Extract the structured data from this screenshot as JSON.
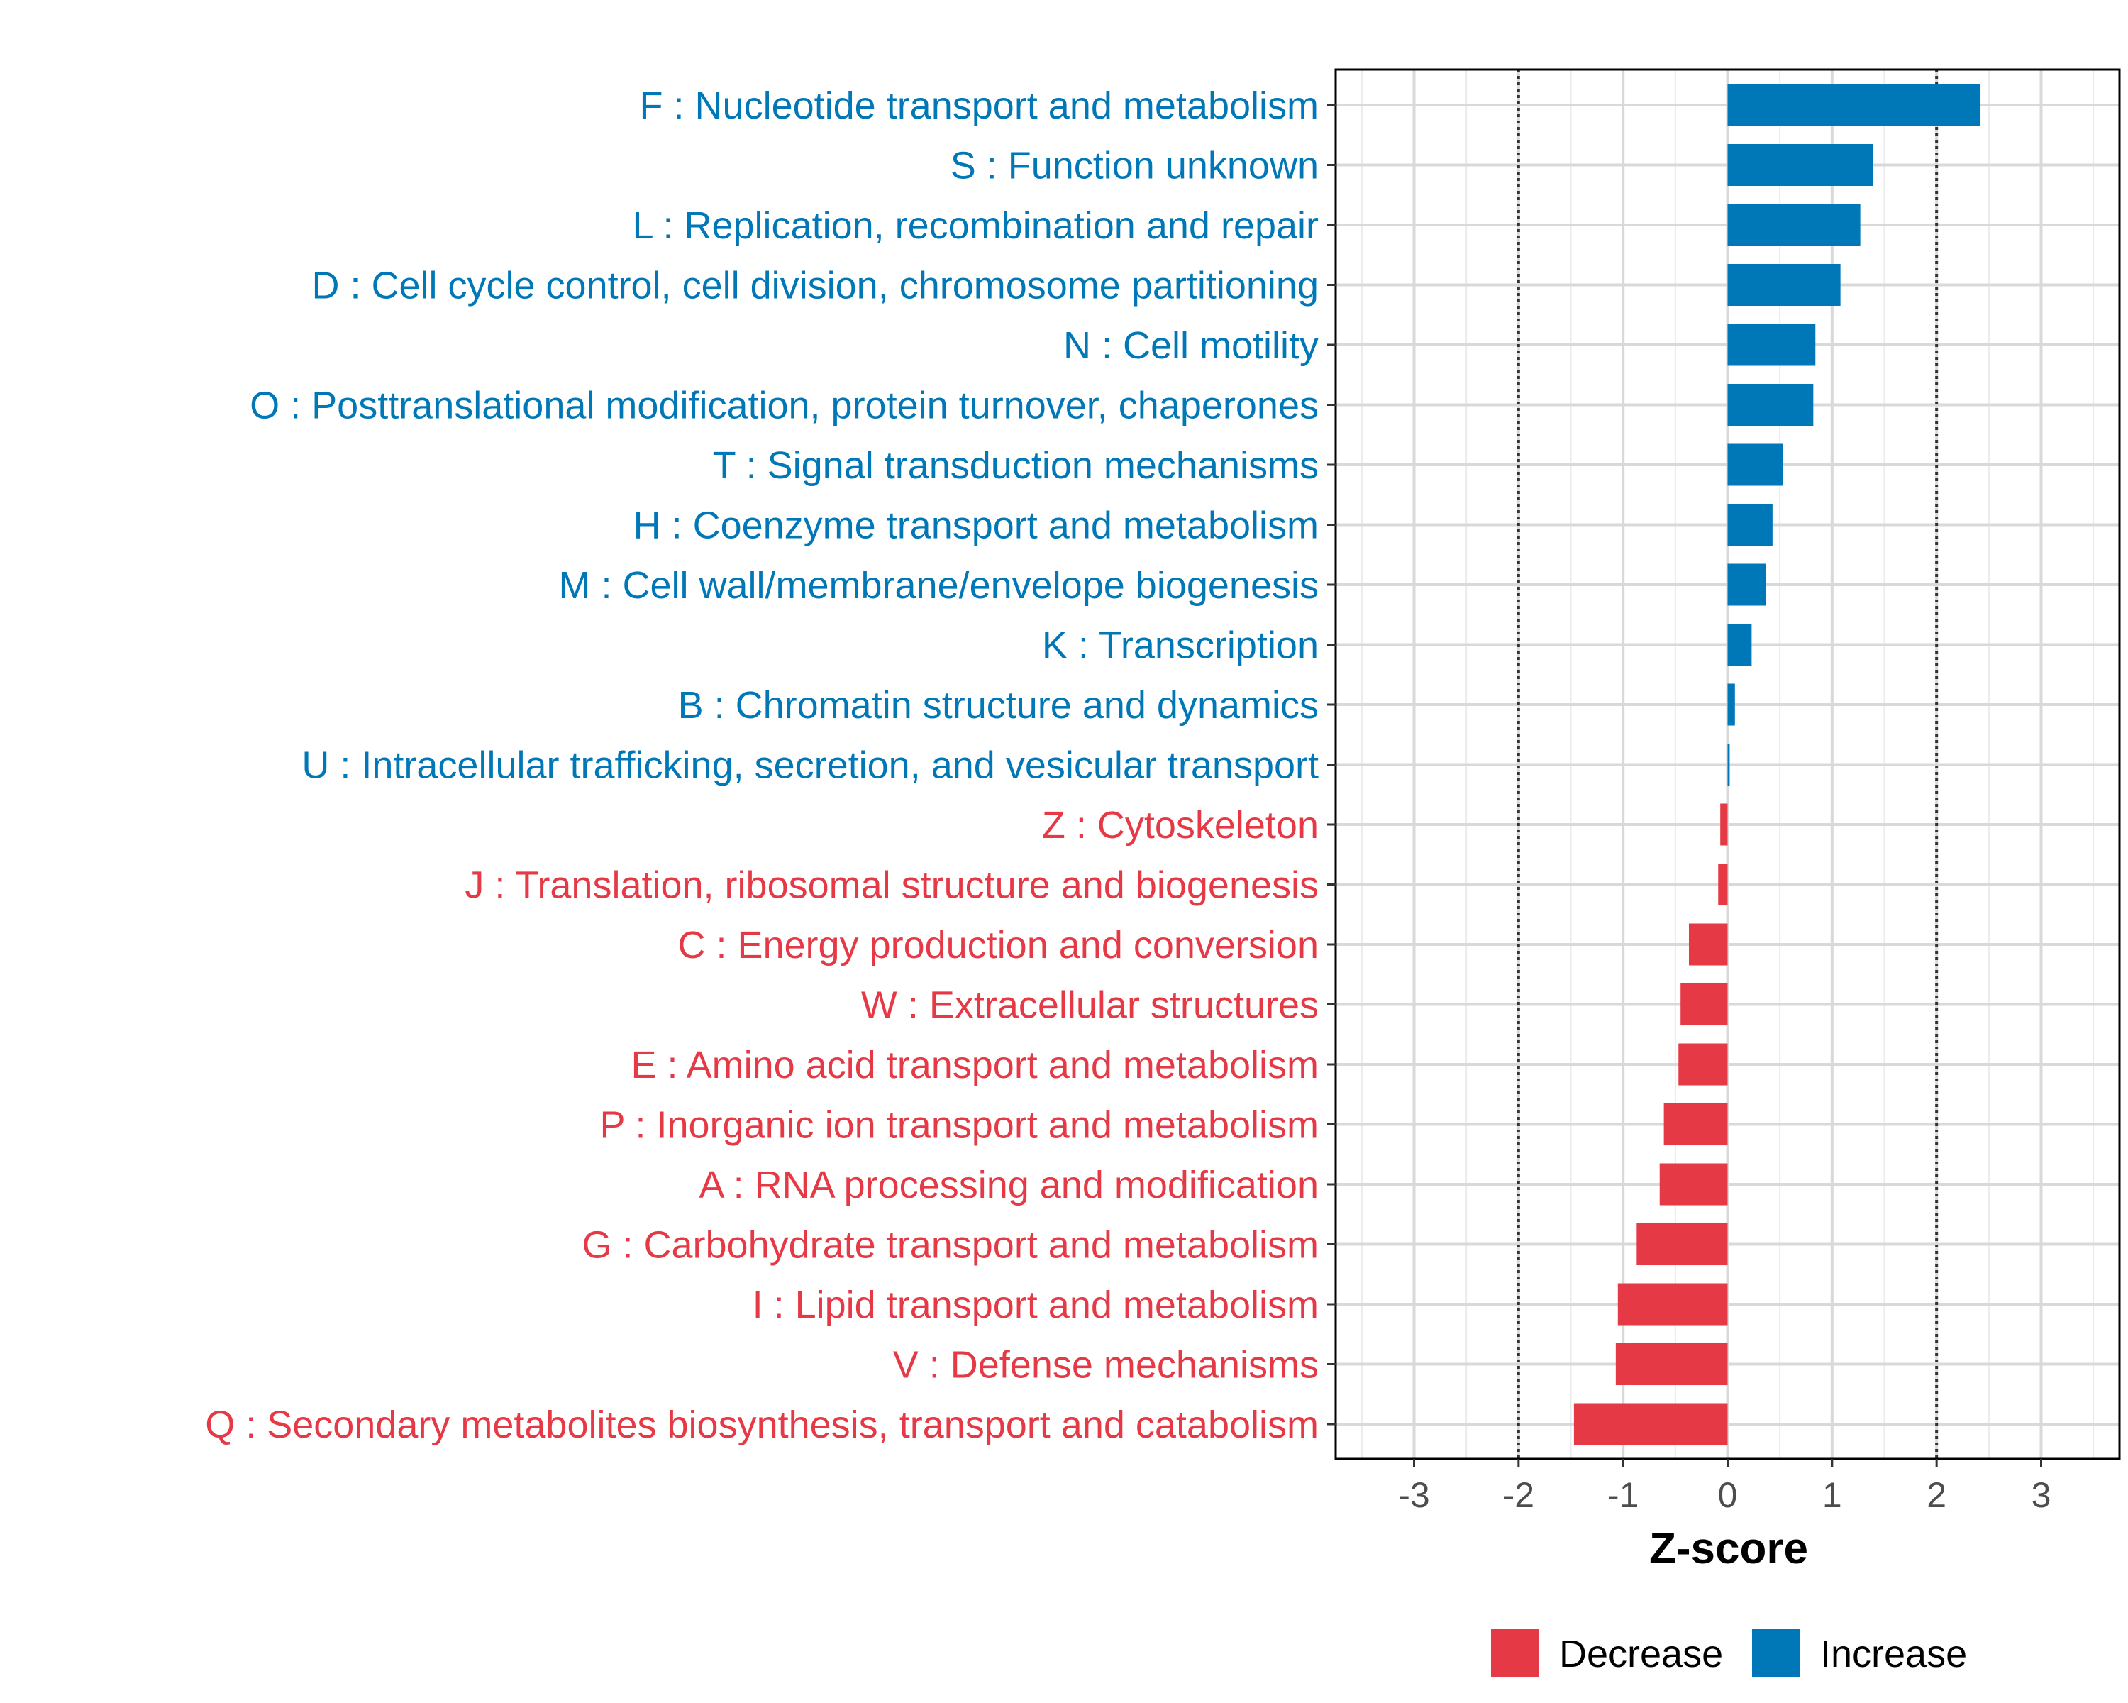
{
  "chart_data": {
    "type": "bar",
    "orientation": "horizontal",
    "xlabel": "Z-score",
    "ylabel": "",
    "xlim": [
      -3.75,
      3.75
    ],
    "xticks": [
      -3,
      -2,
      -1,
      0,
      1,
      2,
      3
    ],
    "reference_lines": [
      -2,
      2
    ],
    "grid": true,
    "legend_position": "bottom",
    "colors": {
      "Decrease": "#e63946",
      "Increase": "#0077b6"
    },
    "legend": [
      {
        "label": "Decrease"
      },
      {
        "label": "Increase"
      }
    ],
    "bars": [
      {
        "category": "F : Nucleotide transport and metabolism",
        "value": 2.42,
        "group": "Increase"
      },
      {
        "category": "S : Function unknown",
        "value": 1.39,
        "group": "Increase"
      },
      {
        "category": "L : Replication, recombination and repair",
        "value": 1.27,
        "group": "Increase"
      },
      {
        "category": "D : Cell cycle control, cell division, chromosome partitioning",
        "value": 1.08,
        "group": "Increase"
      },
      {
        "category": "N : Cell motility",
        "value": 0.84,
        "group": "Increase"
      },
      {
        "category": "O : Posttranslational modification, protein turnover, chaperones",
        "value": 0.82,
        "group": "Increase"
      },
      {
        "category": "T : Signal transduction mechanisms",
        "value": 0.53,
        "group": "Increase"
      },
      {
        "category": "H : Coenzyme transport and metabolism",
        "value": 0.43,
        "group": "Increase"
      },
      {
        "category": "M : Cell wall/membrane/envelope biogenesis",
        "value": 0.37,
        "group": "Increase"
      },
      {
        "category": "K : Transcription",
        "value": 0.23,
        "group": "Increase"
      },
      {
        "category": "B : Chromatin structure and dynamics",
        "value": 0.07,
        "group": "Increase"
      },
      {
        "category": "U : Intracellular trafficking, secretion, and vesicular transport",
        "value": 0.02,
        "group": "Increase"
      },
      {
        "category": "Z : Cytoskeleton",
        "value": -0.07,
        "group": "Decrease"
      },
      {
        "category": "J : Translation, ribosomal structure and biogenesis",
        "value": -0.09,
        "group": "Decrease"
      },
      {
        "category": "C : Energy production and conversion",
        "value": -0.37,
        "group": "Decrease"
      },
      {
        "category": "W : Extracellular structures",
        "value": -0.45,
        "group": "Decrease"
      },
      {
        "category": "E : Amino acid transport and metabolism",
        "value": -0.47,
        "group": "Decrease"
      },
      {
        "category": "P : Inorganic ion transport and metabolism",
        "value": -0.61,
        "group": "Decrease"
      },
      {
        "category": "A : RNA processing and modification",
        "value": -0.65,
        "group": "Decrease"
      },
      {
        "category": "G : Carbohydrate transport and metabolism",
        "value": -0.87,
        "group": "Decrease"
      },
      {
        "category": "I : Lipid transport and metabolism",
        "value": -1.05,
        "group": "Decrease"
      },
      {
        "category": "V : Defense mechanisms",
        "value": -1.07,
        "group": "Decrease"
      },
      {
        "category": "Q : Secondary metabolites biosynthesis, transport and catabolism",
        "value": -1.47,
        "group": "Decrease"
      }
    ]
  }
}
